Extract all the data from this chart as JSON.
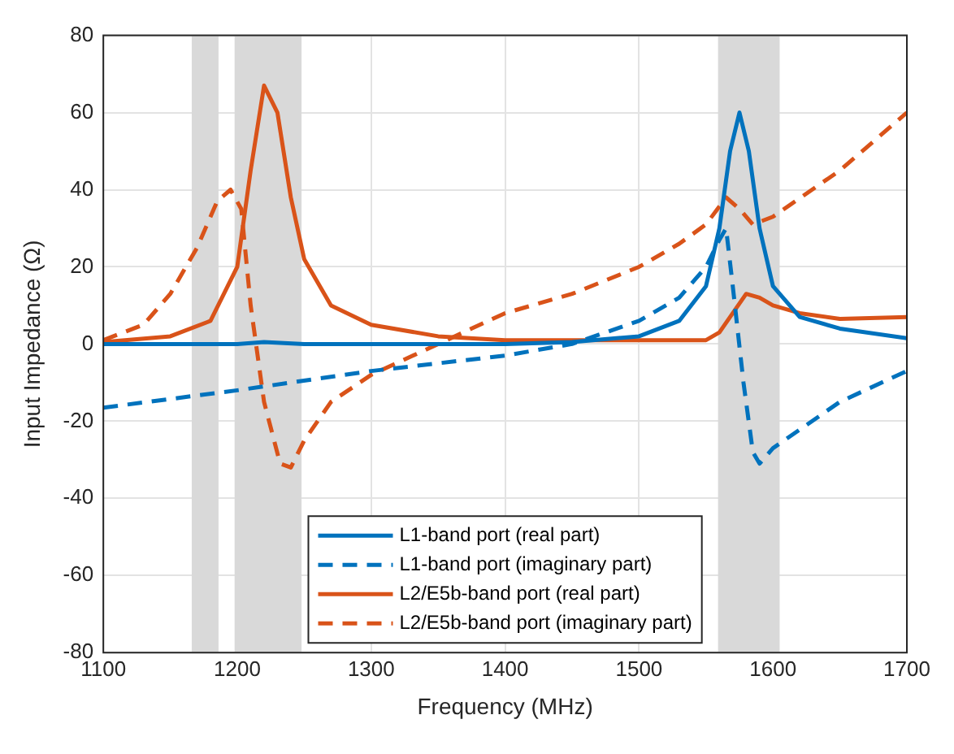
{
  "chart_data": {
    "type": "line",
    "xlabel": "Frequency (MHz)",
    "ylabel": "Input Impedance (Ω)",
    "xlim": [
      1100,
      1700
    ],
    "xticks": [
      1100,
      1200,
      1300,
      1400,
      1500,
      1600,
      1700
    ],
    "ylim": [
      -80,
      80
    ],
    "yticks": [
      -80,
      -60,
      -40,
      -20,
      0,
      20,
      40,
      60,
      80
    ],
    "grid": true,
    "legend": "bottom",
    "marker": "none",
    "bands": [
      {
        "axis": "x",
        "from": 1166,
        "to": 1186,
        "color": "#d9d9d9"
      },
      {
        "axis": "x",
        "from": 1198,
        "to": 1248,
        "color": "#d9d9d9"
      },
      {
        "axis": "x",
        "from": 1559,
        "to": 1605,
        "color": "#d9d9d9"
      }
    ],
    "series": [
      {
        "name": "L1-band port (real part)",
        "color": "#0072bd",
        "line_style": "solid",
        "x": [
          1100,
          1200,
          1220,
          1250,
          1300,
          1400,
          1450,
          1500,
          1530,
          1550,
          1560,
          1568,
          1575,
          1582,
          1590,
          1600,
          1620,
          1650,
          1700
        ],
        "values": [
          0,
          0,
          0.5,
          0,
          0,
          0,
          0.5,
          2,
          6,
          15,
          30,
          50,
          60,
          50,
          30,
          15,
          7,
          4,
          1.5
        ]
      },
      {
        "name": "L1-band port (imaginary part)",
        "color": "#0072bd",
        "line_style": "dashed",
        "x": [
          1100,
          1200,
          1300,
          1400,
          1450,
          1500,
          1530,
          1550,
          1560,
          1565,
          1570,
          1578,
          1585,
          1590,
          1600,
          1650,
          1700
        ],
        "values": [
          -16.5,
          -12,
          -7,
          -3,
          0,
          6,
          12,
          20,
          27,
          30,
          15,
          -10,
          -28,
          -31,
          -27,
          -15,
          -7
        ]
      },
      {
        "name": "L2/E5b-band port (real part)",
        "color": "#d95319",
        "line_style": "solid",
        "x": [
          1100,
          1150,
          1180,
          1200,
          1210,
          1220,
          1230,
          1240,
          1250,
          1270,
          1300,
          1350,
          1400,
          1550,
          1560,
          1570,
          1580,
          1590,
          1600,
          1620,
          1650,
          1700
        ],
        "values": [
          0.5,
          2,
          6,
          20,
          45,
          67,
          60,
          38,
          22,
          10,
          5,
          2,
          1,
          1,
          3,
          8,
          13,
          12,
          10,
          8,
          6.5,
          7
        ]
      },
      {
        "name": "L2/E5b-band port (imaginary part)",
        "color": "#d95319",
        "line_style": "dashed",
        "x": [
          1100,
          1130,
          1150,
          1170,
          1185,
          1195,
          1203,
          1210,
          1220,
          1232,
          1240,
          1250,
          1270,
          1300,
          1350,
          1400,
          1450,
          1500,
          1530,
          1550,
          1565,
          1575,
          1585,
          1600,
          1650,
          1700
        ],
        "values": [
          1,
          5,
          13,
          25,
          37,
          40,
          35,
          10,
          -15,
          -31,
          -32,
          -25,
          -15,
          -8,
          0,
          8,
          13,
          20,
          26,
          31,
          38,
          35,
          31,
          33,
          45,
          60
        ]
      }
    ]
  }
}
